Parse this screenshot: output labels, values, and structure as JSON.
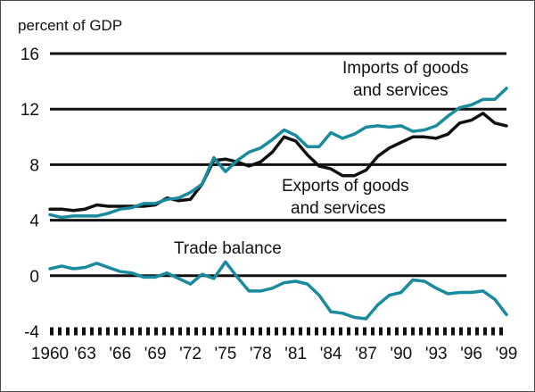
{
  "chart_data": {
    "type": "line",
    "unit_label": "percent of GDP",
    "ylim": [
      -4,
      16
    ],
    "yticks": [
      -4,
      0,
      4,
      8,
      12,
      16
    ],
    "xlim": [
      1960,
      1999
    ],
    "x_tick_labels": [
      {
        "year": 1960,
        "label": "1960"
      },
      {
        "year": 1963,
        "label": "'63"
      },
      {
        "year": 1966,
        "label": "'66"
      },
      {
        "year": 1969,
        "label": "'69"
      },
      {
        "year": 1972,
        "label": "'72"
      },
      {
        "year": 1975,
        "label": "'75"
      },
      {
        "year": 1978,
        "label": "'78"
      },
      {
        "year": 1981,
        "label": "'81"
      },
      {
        "year": 1984,
        "label": "'84"
      },
      {
        "year": 1987,
        "label": "'87"
      },
      {
        "year": 1990,
        "label": "'90"
      },
      {
        "year": 1993,
        "label": "'93"
      },
      {
        "year": 1996,
        "label": "'96"
      },
      {
        "year": 1999,
        "label": "'99"
      }
    ],
    "x": [
      1960,
      1961,
      1962,
      1963,
      1964,
      1965,
      1966,
      1967,
      1968,
      1969,
      1970,
      1971,
      1972,
      1973,
      1974,
      1975,
      1976,
      1977,
      1978,
      1979,
      1980,
      1981,
      1982,
      1983,
      1984,
      1985,
      1986,
      1987,
      1988,
      1989,
      1990,
      1991,
      1992,
      1993,
      1994,
      1995,
      1996,
      1997,
      1998,
      1999
    ],
    "grid": true,
    "series": [
      {
        "name": "Imports of goods and services",
        "name_lines": [
          "Imports of goods",
          "and services"
        ],
        "color": "#1a8a9e",
        "values": [
          4.4,
          4.2,
          4.3,
          4.3,
          4.3,
          4.5,
          4.8,
          4.9,
          5.2,
          5.2,
          5.5,
          5.6,
          6.0,
          6.6,
          8.5,
          7.5,
          8.3,
          8.9,
          9.2,
          9.8,
          10.5,
          10.1,
          9.3,
          9.3,
          10.3,
          9.9,
          10.2,
          10.7,
          10.8,
          10.7,
          10.8,
          10.4,
          10.5,
          10.8,
          11.5,
          12.1,
          12.3,
          12.7,
          12.7,
          13.5
        ]
      },
      {
        "name": "Exports of goods and services",
        "name_lines": [
          "Exports of goods",
          "and services"
        ],
        "color": "#111111",
        "values": [
          4.8,
          4.8,
          4.7,
          4.8,
          5.1,
          5.0,
          5.0,
          5.0,
          5.0,
          5.1,
          5.6,
          5.4,
          5.5,
          6.6,
          8.3,
          8.4,
          8.2,
          7.9,
          8.2,
          8.9,
          10.0,
          9.7,
          8.7,
          7.9,
          7.7,
          7.2,
          7.2,
          7.6,
          8.6,
          9.2,
          9.6,
          10.0,
          10.0,
          9.9,
          10.2,
          11.0,
          11.2,
          11.7,
          11.0,
          10.8
        ]
      },
      {
        "name": "Trade balance",
        "name_lines": [
          "Trade balance"
        ],
        "color": "#1a8a9e",
        "values": [
          0.5,
          0.7,
          0.5,
          0.6,
          0.9,
          0.6,
          0.3,
          0.2,
          -0.1,
          -0.1,
          0.2,
          -0.2,
          -0.6,
          0.1,
          -0.2,
          1.0,
          -0.1,
          -1.1,
          -1.1,
          -0.9,
          -0.5,
          -0.4,
          -0.6,
          -1.4,
          -2.6,
          -2.7,
          -3.0,
          -3.1,
          -2.1,
          -1.4,
          -1.2,
          -0.3,
          -0.4,
          -0.9,
          -1.3,
          -1.2,
          -1.2,
          -1.1,
          -1.7,
          -2.8
        ]
      }
    ]
  }
}
